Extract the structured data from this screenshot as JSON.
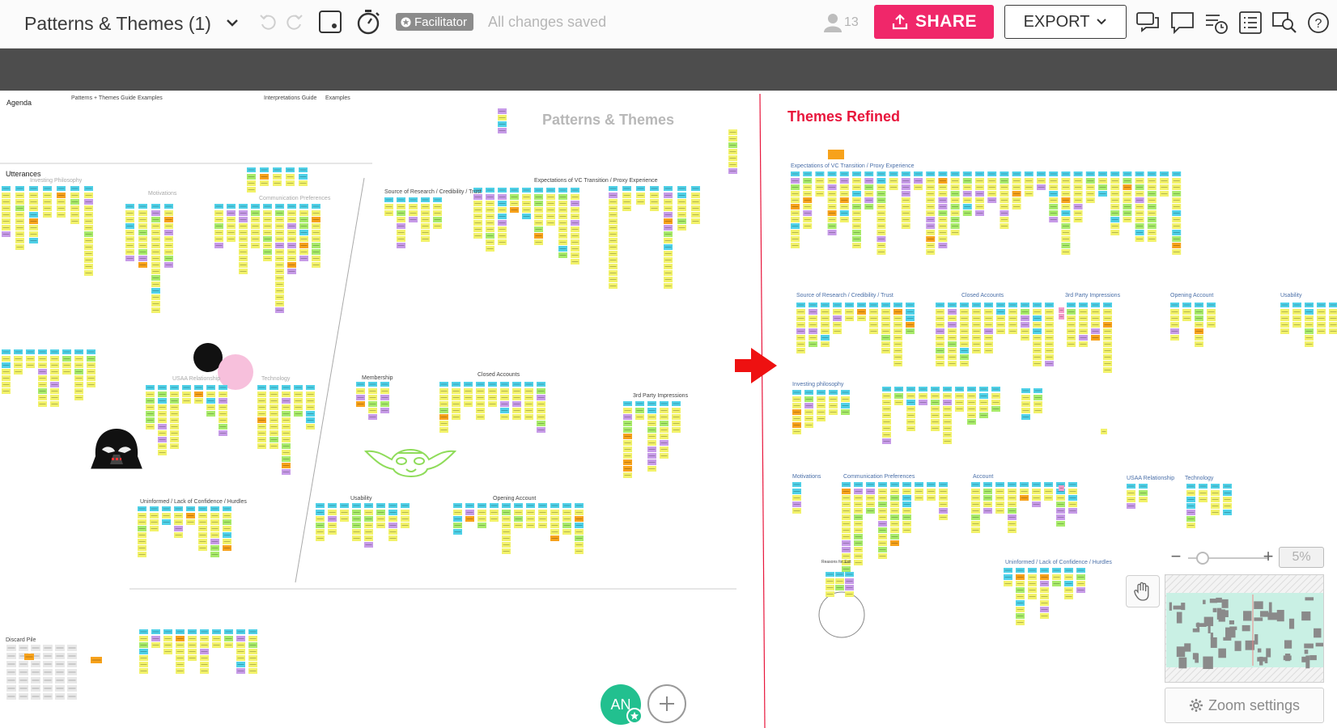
{
  "header": {
    "board_title": "Patterns & Themes (1)",
    "facilitator_label": "Facilitator",
    "save_status": "All changes saved",
    "user_count": "13",
    "share_label": "SHARE",
    "export_label": "EXPORT",
    "icons": [
      "chevron-down-icon",
      "undo-icon",
      "redo-icon",
      "frame-icon",
      "timer-icon",
      "star-icon",
      "user-icon",
      "upload-icon",
      "chat-icon",
      "comment-icon",
      "activity-icon",
      "list-icon",
      "search-icon",
      "help-icon"
    ]
  },
  "board": {
    "left_title": "Patterns & Themes",
    "right_title": "Themes Refined",
    "left_labels": {
      "agenda": "Agenda",
      "patterns_guide": "Patterns + Themes Guide",
      "examples_1": "Examples",
      "interpretations_guide": "Interpretations Guide",
      "examples_2": "Examples",
      "utterances": "Utterances",
      "investing_philosophy": "Investing Philosophy",
      "motivations": "Motivations",
      "communication_preferences": "Communication Preferences",
      "source_research": "Source of Research / Credibility / Trust",
      "expectations": "Expectations of VC Transition / Proxy Experience",
      "usaa_relationship": "USAA Relationship",
      "technology": "Technology",
      "membership": "Membership",
      "closed_accounts": "Closed Accounts",
      "third_party": "3rd Party Impressions",
      "uninformed": "Uninformed / Lack of Confidence / Hurdles",
      "usability": "Usability",
      "opening_account": "Opening Account",
      "discard_pile": "Discard Pile"
    },
    "right_labels": {
      "expectations": "Expectations of VC Transition / Proxy Experience",
      "source_research": "Source of Research / Credibility / Trust",
      "closed_accounts": "Closed Accounts",
      "third_party": "3rd Party Impressions",
      "opening_account": "Opening Account",
      "usability": "Usability",
      "investing_philosophy": "Investing philosophy",
      "motivations": "Motivations",
      "communication_preferences": "Communication Preferences",
      "account": "Account",
      "usaa_relationship": "USAA Relationship",
      "technology": "Technology",
      "uninformed": "Uninformed / Lack of Confidence / Hurdles",
      "reasons_for_exit": "Reasons for Exit"
    },
    "colors": {
      "sticky_yellow": "#f2f26a",
      "sticky_cyan": "#4fd1e8",
      "sticky_green": "#a8eb6a",
      "sticky_purple": "#c79be8",
      "sticky_orange": "#f7a21b",
      "sticky_pink": "#f49ac8",
      "divider_red": "#e8163c"
    }
  },
  "zoom": {
    "level": "5%",
    "settings_label": "Zoom settings",
    "minus": "−",
    "plus": "+"
  },
  "collaborators": {
    "initials": "AN"
  }
}
